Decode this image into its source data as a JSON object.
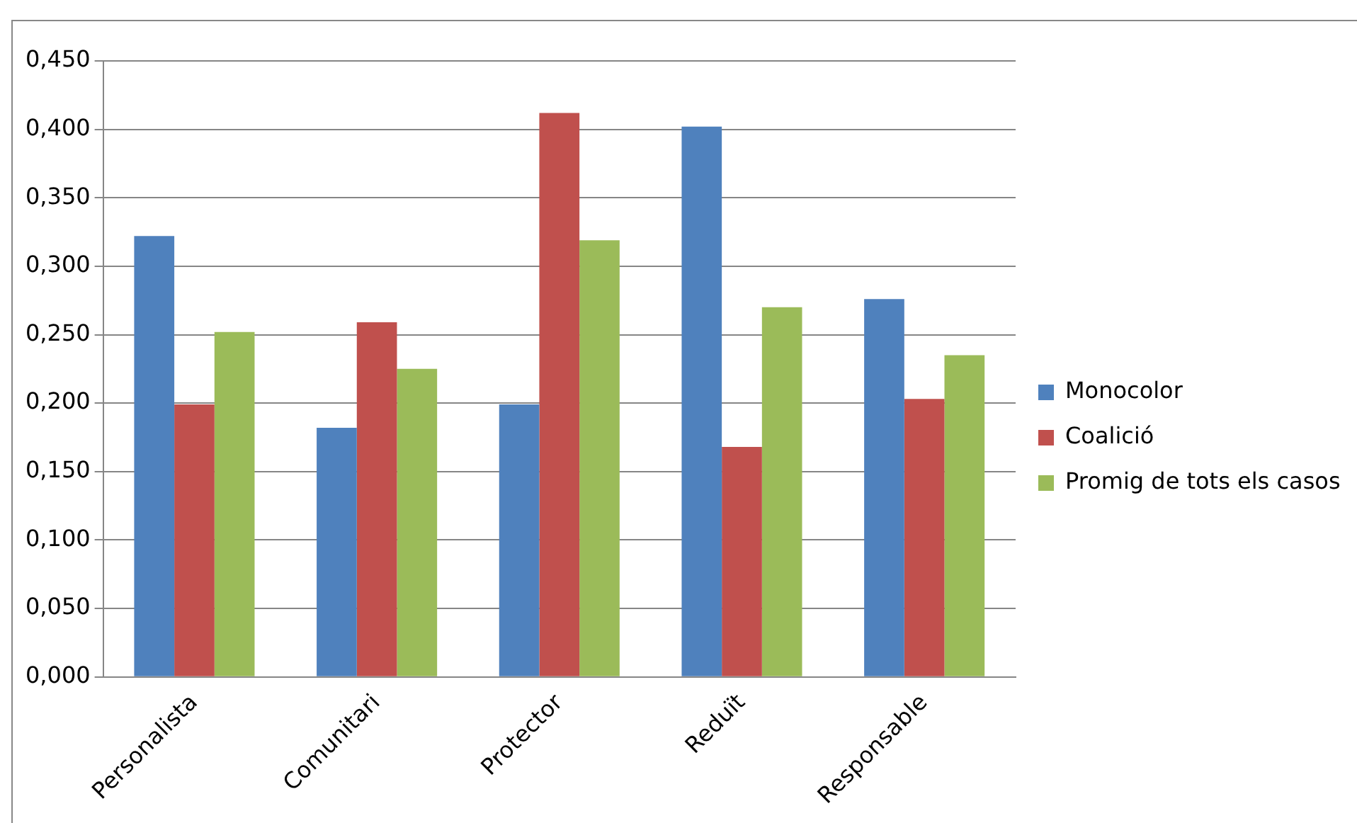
{
  "chart_data": {
    "type": "bar",
    "categories": [
      "Personalista",
      "Comunitari",
      "Protector",
      "Reduït",
      "Responsable"
    ],
    "series": [
      {
        "name": "Monocolor",
        "color": "#4f81bd",
        "values": [
          0.322,
          0.182,
          0.199,
          0.402,
          0.276
        ]
      },
      {
        "name": "Coalició",
        "color": "#c0504d",
        "values": [
          0.199,
          0.259,
          0.412,
          0.168,
          0.203
        ]
      },
      {
        "name": "Promig de tots els casos",
        "color": "#9bbb59",
        "values": [
          0.252,
          0.225,
          0.319,
          0.27,
          0.235
        ]
      }
    ],
    "ylim": [
      0,
      0.45
    ],
    "yticks": [
      {
        "value": 0,
        "label": "0,000"
      },
      {
        "value": 0.05,
        "label": "0,050"
      },
      {
        "value": 0.1,
        "label": "0,100"
      },
      {
        "value": 0.15,
        "label": "0,150"
      },
      {
        "value": 0.2,
        "label": "0,200"
      },
      {
        "value": 0.25,
        "label": "0,250"
      },
      {
        "value": 0.3,
        "label": "0,300"
      },
      {
        "value": 0.35,
        "label": "0,350"
      },
      {
        "value": 0.4,
        "label": "0,400"
      },
      {
        "value": 0.45,
        "label": "0,450"
      }
    ],
    "grid": "y",
    "legend": "right"
  }
}
